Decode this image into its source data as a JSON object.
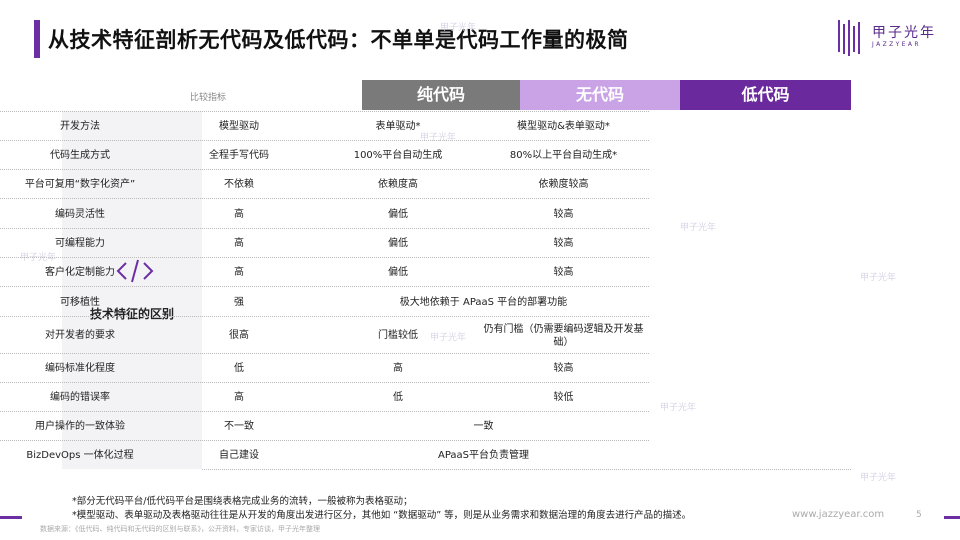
{
  "title": "从技术特征剖析无代码及低代码：不单单是代码工作量的极简",
  "logo": {
    "cn": "甲子光年",
    "en": "JAZZYEAR"
  },
  "table": {
    "corner_label": "比较指标",
    "columns": [
      "纯代码",
      "无代码",
      "低代码"
    ],
    "side_label": "技术特征的区别",
    "rows": [
      {
        "metric": "开发方法",
        "cells": [
          "模型驱动",
          "表单驱动*",
          "模型驱动&表单驱动*"
        ]
      },
      {
        "metric": "代码生成方式",
        "cells": [
          "全程手写代码",
          "100%平台自动生成",
          "80%以上平台自动生成*"
        ]
      },
      {
        "metric": "平台可复用“数字化资产”",
        "cells": [
          "不依赖",
          "依赖度高",
          "依赖度较高"
        ]
      },
      {
        "metric": "编码灵活性",
        "cells": [
          "高",
          "偏低",
          "较高"
        ]
      },
      {
        "metric": "可编程能力",
        "cells": [
          "高",
          "偏低",
          "较高"
        ]
      },
      {
        "metric": "客户化定制能力",
        "cells": [
          "高",
          "偏低",
          "较高"
        ]
      },
      {
        "metric": "可移植性",
        "cells": [
          "强",
          "极大地依赖于 APaaS 平台的部署功能"
        ]
      },
      {
        "metric": "对开发者的要求",
        "cells": [
          "很高",
          "门槛较低",
          "仍有门槛（仍需要编码逻辑及开发基础）"
        ]
      },
      {
        "metric": "编码标准化程度",
        "cells": [
          "低",
          "高",
          "较高"
        ]
      },
      {
        "metric": "编码的错误率",
        "cells": [
          "高",
          "低",
          "较低"
        ]
      },
      {
        "metric": "用户操作的一致体验",
        "cells": [
          "不一致",
          "一致"
        ]
      },
      {
        "metric": "BizDevOps 一体化过程",
        "cells": [
          "自己建设",
          "APaaS平台负责管理"
        ]
      }
    ]
  },
  "footnotes": [
    "*部分无代码平台/低代码平台是围绕表格完成业务的流转，一般被称为表格驱动；",
    "*模型驱动、表单驱动及表格驱动往往是从开发的角度出发进行区分，其他如 “数据驱动” 等，则是从业务需求和数据治理的角度去进行产品的描述。"
  ],
  "source": "数据来源：《低代码、纯代码和无代码的区别与联系》，公开资料，专家访谈，甲子光年整理",
  "website": "www.jazzyear.com",
  "page_number": "5",
  "watermark_text": "甲子光年",
  "colors": {
    "accent": "#6b2fa3",
    "pure_code": "#7a7a7a",
    "no_code": "#c9a3e6",
    "low_code": "#6a2a9e"
  }
}
